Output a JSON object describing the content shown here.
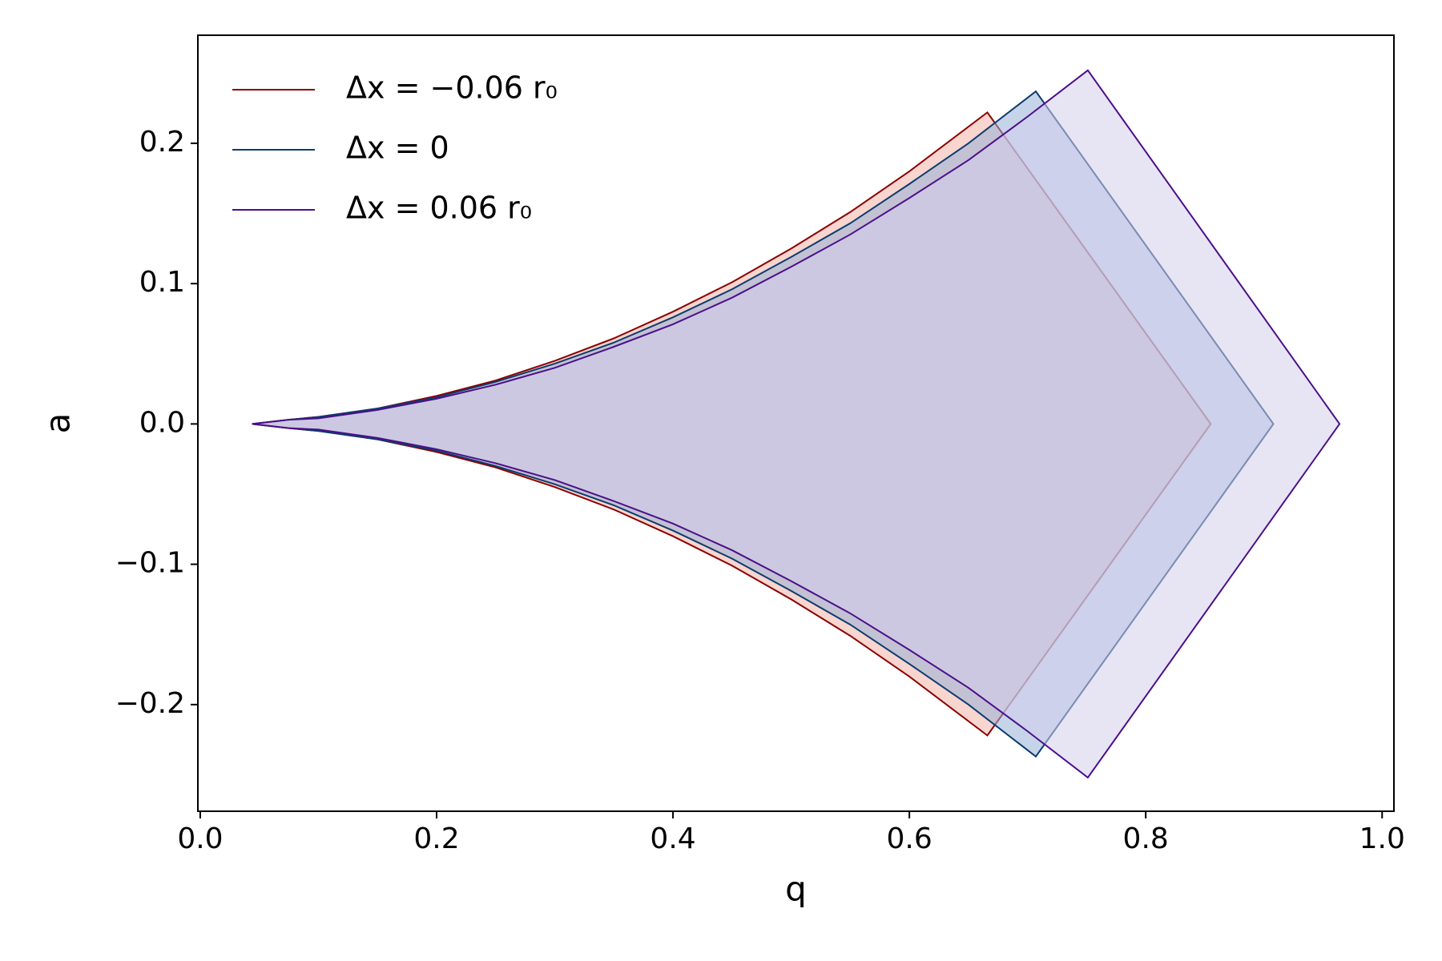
{
  "chart_data": {
    "type": "area",
    "xlabel": "q",
    "ylabel": "a",
    "xlim": [
      -0.002,
      1.01
    ],
    "ylim": [
      -0.276,
      0.277
    ],
    "xticks": [
      {
        "value": 0,
        "label": "0.0"
      },
      0.2,
      0.4,
      0.6,
      0.8,
      {
        "value": 1,
        "label": "1.0"
      }
    ],
    "yticks": [
      {
        "value": -0.2,
        "label": "−0.2"
      },
      {
        "value": -0.1,
        "label": "−0.1"
      },
      {
        "value": 0,
        "label": "0.0"
      },
      0.1,
      0.2
    ],
    "legend": "upper left",
    "series": [
      {
        "name": "Δx = −0.06 r₀",
        "color": "#8b0000",
        "fill": "#f2b3a8",
        "x": [
          0.044,
          0.075,
          0.1,
          0.15,
          0.2,
          0.25,
          0.3,
          0.35,
          0.4,
          0.45,
          0.5,
          0.55,
          0.6,
          0.666,
          0.855,
          0.666,
          0.6,
          0.55,
          0.5,
          0.45,
          0.4,
          0.35,
          0.3,
          0.25,
          0.2,
          0.15,
          0.1,
          0.075,
          0.044
        ],
        "values": [
          0,
          0.003,
          0.005,
          0.011,
          0.02,
          0.031,
          0.045,
          0.061,
          0.08,
          0.101,
          0.125,
          0.151,
          0.18,
          0.222,
          0,
          -0.222,
          -0.18,
          -0.151,
          -0.125,
          -0.101,
          -0.08,
          -0.061,
          -0.045,
          -0.031,
          -0.02,
          -0.011,
          -0.005,
          -0.003,
          0
        ]
      },
      {
        "name": "Δx = 0",
        "color": "#0b3c6e",
        "fill": "#98b0d8",
        "x": [
          0.044,
          0.075,
          0.1,
          0.15,
          0.2,
          0.25,
          0.3,
          0.35,
          0.4,
          0.45,
          0.5,
          0.55,
          0.6,
          0.65,
          0.707,
          0.908,
          0.707,
          0.65,
          0.6,
          0.55,
          0.5,
          0.45,
          0.4,
          0.35,
          0.3,
          0.25,
          0.2,
          0.15,
          0.1,
          0.075,
          0.044
        ],
        "values": [
          0,
          0.003,
          0.005,
          0.011,
          0.019,
          0.03,
          0.043,
          0.058,
          0.076,
          0.096,
          0.119,
          0.143,
          0.171,
          0.2,
          0.237,
          0,
          -0.237,
          -0.2,
          -0.171,
          -0.143,
          -0.119,
          -0.096,
          -0.076,
          -0.058,
          -0.043,
          -0.03,
          -0.019,
          -0.011,
          -0.005,
          -0.003,
          0
        ]
      },
      {
        "name": "Δx = 0.06 r₀",
        "color": "#4b0f8a",
        "fill": "#d4cdeb",
        "x": [
          0.044,
          0.075,
          0.1,
          0.15,
          0.2,
          0.25,
          0.3,
          0.35,
          0.4,
          0.45,
          0.5,
          0.55,
          0.6,
          0.65,
          0.7,
          0.751,
          0.964,
          0.751,
          0.7,
          0.65,
          0.6,
          0.55,
          0.5,
          0.45,
          0.4,
          0.35,
          0.3,
          0.25,
          0.2,
          0.15,
          0.1,
          0.075,
          0.044
        ],
        "values": [
          0,
          0.003,
          0.004,
          0.01,
          0.018,
          0.028,
          0.04,
          0.055,
          0.071,
          0.09,
          0.112,
          0.135,
          0.161,
          0.188,
          0.219,
          0.252,
          0,
          -0.252,
          -0.219,
          -0.188,
          -0.161,
          -0.135,
          -0.112,
          -0.09,
          -0.071,
          -0.055,
          -0.04,
          -0.028,
          -0.018,
          -0.01,
          -0.004,
          -0.003,
          0
        ]
      }
    ]
  }
}
